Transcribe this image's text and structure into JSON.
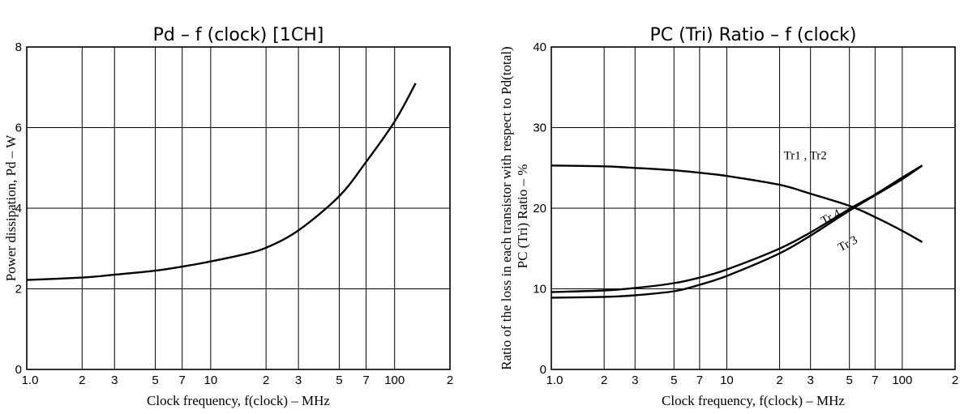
{
  "chart_data": [
    {
      "type": "line",
      "title": "Pd  –  f (clock)  [1CH]",
      "xlabel": "Clock frequency, f(clock) – MHz",
      "ylabel": "Power dissipation, Pd – W",
      "xscale": "log",
      "xlim": [
        1,
        200
      ],
      "ylim": [
        0,
        8
      ],
      "x_tick_labels": [
        "1.0",
        "2",
        "3",
        "5",
        "7",
        "10",
        "2",
        "3",
        "5",
        "7",
        "100",
        "2"
      ],
      "y_tick_labels": [
        "0",
        "2",
        "4",
        "6",
        "8"
      ],
      "grid": true,
      "series": [
        {
          "x": [
            1,
            2,
            3,
            5,
            7,
            10,
            15,
            20,
            30,
            50,
            70,
            100,
            130
          ],
          "y": [
            2.22,
            2.28,
            2.35,
            2.45,
            2.55,
            2.68,
            2.85,
            3.02,
            3.45,
            4.3,
            5.15,
            6.15,
            7.1
          ]
        }
      ]
    },
    {
      "type": "line",
      "title": "PC (Tri) Ratio  –  f (clock)",
      "xlabel": "Clock frequency, f(clock) – MHz",
      "ylabel": "Ratio of the loss in each transistor with respect to Pd(total)",
      "ylabel2": "PC (Tri) Ratio  –  %",
      "xscale": "log",
      "xlim": [
        1,
        200
      ],
      "ylim": [
        0,
        40
      ],
      "x_tick_labels": [
        "1.0",
        "2",
        "3",
        "5",
        "7",
        "10",
        "2",
        "3",
        "5",
        "7",
        "100",
        "2"
      ],
      "y_tick_labels": [
        "0",
        "10",
        "20",
        "30",
        "40"
      ],
      "grid": true,
      "series": [
        {
          "name": "Tr1 , Tr2",
          "x": [
            1,
            2,
            3,
            5,
            7,
            10,
            20,
            30,
            50,
            70,
            100,
            130
          ],
          "y": [
            25.3,
            25.2,
            25.0,
            24.7,
            24.4,
            24.0,
            22.9,
            21.8,
            20.3,
            18.9,
            17.2,
            15.8
          ]
        },
        {
          "name": "Tr 4",
          "x": [
            1,
            2,
            3,
            5,
            7,
            10,
            20,
            30,
            50,
            70,
            100,
            130
          ],
          "y": [
            9.6,
            9.8,
            10.1,
            10.7,
            11.4,
            12.4,
            15.0,
            17.0,
            19.9,
            21.7,
            23.8,
            25.3
          ]
        },
        {
          "name": "Tr 3",
          "x": [
            1,
            2,
            3,
            5,
            7,
            10,
            20,
            30,
            50,
            70,
            100,
            130
          ],
          "y": [
            8.9,
            9.0,
            9.2,
            9.7,
            10.5,
            11.6,
            14.4,
            16.6,
            19.7,
            21.6,
            23.6,
            25.3
          ]
        }
      ]
    }
  ]
}
